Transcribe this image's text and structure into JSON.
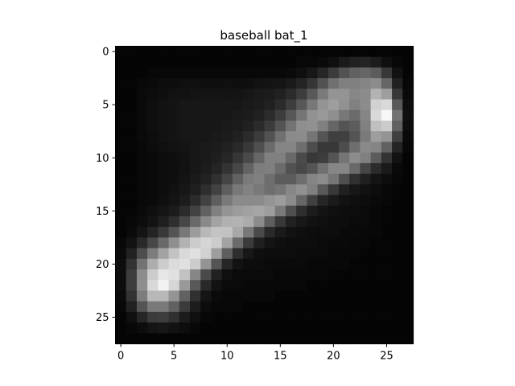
{
  "chart_data": {
    "type": "heatmap",
    "title": "baseball bat_1",
    "xlabel": "",
    "ylabel": "",
    "colormap": "gray",
    "vmin": 0,
    "vmax": 1,
    "x_ticks": [
      0,
      5,
      10,
      15,
      20,
      25
    ],
    "y_ticks": [
      0,
      5,
      10,
      15,
      20,
      25
    ],
    "xlim": [
      -0.5,
      27.5
    ],
    "ylim": [
      27.5,
      -0.5
    ],
    "grid": false,
    "shape": [
      28,
      28
    ],
    "description_of_values": "pixel intensity 0-1, estimated",
    "values": [
      [
        0.02,
        0.02,
        0.02,
        0.02,
        0.02,
        0.02,
        0.02,
        0.02,
        0.02,
        0.02,
        0.02,
        0.02,
        0.02,
        0.02,
        0.02,
        0.02,
        0.02,
        0.02,
        0.02,
        0.02,
        0.02,
        0.02,
        0.02,
        0.02,
        0.02,
        0.02,
        0.02,
        0.02
      ],
      [
        0.02,
        0.02,
        0.02,
        0.02,
        0.02,
        0.02,
        0.02,
        0.02,
        0.02,
        0.02,
        0.02,
        0.02,
        0.02,
        0.02,
        0.02,
        0.02,
        0.02,
        0.03,
        0.03,
        0.04,
        0.06,
        0.1,
        0.13,
        0.14,
        0.11,
        0.06,
        0.03,
        0.02
      ],
      [
        0.02,
        0.02,
        0.02,
        0.03,
        0.03,
        0.03,
        0.03,
        0.03,
        0.03,
        0.03,
        0.03,
        0.03,
        0.03,
        0.03,
        0.03,
        0.03,
        0.04,
        0.06,
        0.09,
        0.15,
        0.23,
        0.32,
        0.38,
        0.4,
        0.36,
        0.22,
        0.07,
        0.02
      ],
      [
        0.02,
        0.02,
        0.03,
        0.04,
        0.05,
        0.05,
        0.06,
        0.06,
        0.06,
        0.06,
        0.06,
        0.06,
        0.06,
        0.07,
        0.08,
        0.08,
        0.1,
        0.14,
        0.21,
        0.32,
        0.44,
        0.5,
        0.5,
        0.52,
        0.55,
        0.4,
        0.13,
        0.03
      ],
      [
        0.02,
        0.02,
        0.04,
        0.05,
        0.06,
        0.07,
        0.07,
        0.08,
        0.08,
        0.08,
        0.08,
        0.08,
        0.09,
        0.1,
        0.11,
        0.13,
        0.17,
        0.24,
        0.35,
        0.48,
        0.58,
        0.58,
        0.53,
        0.55,
        0.7,
        0.62,
        0.22,
        0.04
      ],
      [
        0.02,
        0.02,
        0.04,
        0.06,
        0.07,
        0.08,
        0.09,
        0.09,
        0.09,
        0.09,
        0.09,
        0.09,
        0.1,
        0.11,
        0.13,
        0.17,
        0.24,
        0.34,
        0.47,
        0.58,
        0.62,
        0.57,
        0.5,
        0.55,
        0.82,
        0.85,
        0.35,
        0.05
      ],
      [
        0.02,
        0.02,
        0.04,
        0.06,
        0.07,
        0.08,
        0.09,
        0.09,
        0.09,
        0.09,
        0.09,
        0.1,
        0.11,
        0.13,
        0.17,
        0.24,
        0.34,
        0.46,
        0.57,
        0.6,
        0.56,
        0.47,
        0.42,
        0.52,
        0.85,
        0.97,
        0.45,
        0.06
      ],
      [
        0.02,
        0.02,
        0.04,
        0.06,
        0.07,
        0.08,
        0.09,
        0.09,
        0.09,
        0.09,
        0.1,
        0.11,
        0.13,
        0.17,
        0.23,
        0.33,
        0.45,
        0.56,
        0.57,
        0.5,
        0.4,
        0.33,
        0.36,
        0.5,
        0.75,
        0.8,
        0.38,
        0.05
      ],
      [
        0.02,
        0.02,
        0.04,
        0.05,
        0.07,
        0.08,
        0.09,
        0.09,
        0.09,
        0.1,
        0.11,
        0.13,
        0.17,
        0.23,
        0.32,
        0.44,
        0.54,
        0.55,
        0.46,
        0.33,
        0.25,
        0.25,
        0.33,
        0.48,
        0.62,
        0.58,
        0.25,
        0.04
      ],
      [
        0.02,
        0.02,
        0.03,
        0.05,
        0.06,
        0.07,
        0.08,
        0.09,
        0.1,
        0.11,
        0.13,
        0.16,
        0.22,
        0.31,
        0.42,
        0.52,
        0.52,
        0.43,
        0.3,
        0.22,
        0.22,
        0.3,
        0.43,
        0.54,
        0.52,
        0.38,
        0.14,
        0.03
      ],
      [
        0.02,
        0.02,
        0.03,
        0.04,
        0.05,
        0.06,
        0.07,
        0.09,
        0.1,
        0.12,
        0.15,
        0.21,
        0.29,
        0.4,
        0.5,
        0.5,
        0.41,
        0.29,
        0.22,
        0.24,
        0.33,
        0.46,
        0.55,
        0.5,
        0.36,
        0.2,
        0.07,
        0.02
      ],
      [
        0.02,
        0.02,
        0.03,
        0.04,
        0.05,
        0.06,
        0.07,
        0.09,
        0.11,
        0.14,
        0.2,
        0.28,
        0.39,
        0.49,
        0.5,
        0.42,
        0.32,
        0.28,
        0.33,
        0.44,
        0.53,
        0.53,
        0.41,
        0.27,
        0.17,
        0.1,
        0.04,
        0.02
      ],
      [
        0.02,
        0.02,
        0.03,
        0.04,
        0.05,
        0.06,
        0.08,
        0.1,
        0.13,
        0.19,
        0.27,
        0.38,
        0.48,
        0.5,
        0.43,
        0.36,
        0.36,
        0.43,
        0.52,
        0.55,
        0.46,
        0.31,
        0.19,
        0.12,
        0.08,
        0.05,
        0.03,
        0.02
      ],
      [
        0.02,
        0.02,
        0.03,
        0.04,
        0.05,
        0.07,
        0.09,
        0.12,
        0.18,
        0.26,
        0.37,
        0.47,
        0.51,
        0.47,
        0.43,
        0.46,
        0.53,
        0.57,
        0.5,
        0.35,
        0.22,
        0.13,
        0.09,
        0.07,
        0.05,
        0.03,
        0.02,
        0.02
      ],
      [
        0.02,
        0.02,
        0.03,
        0.04,
        0.06,
        0.08,
        0.11,
        0.17,
        0.26,
        0.37,
        0.48,
        0.54,
        0.54,
        0.54,
        0.58,
        0.61,
        0.55,
        0.4,
        0.25,
        0.15,
        0.1,
        0.07,
        0.06,
        0.05,
        0.04,
        0.03,
        0.02,
        0.02
      ],
      [
        0.02,
        0.02,
        0.04,
        0.06,
        0.08,
        0.11,
        0.17,
        0.26,
        0.38,
        0.5,
        0.58,
        0.61,
        0.63,
        0.65,
        0.62,
        0.48,
        0.31,
        0.18,
        0.11,
        0.08,
        0.06,
        0.05,
        0.05,
        0.04,
        0.03,
        0.02,
        0.02,
        0.02
      ],
      [
        0.02,
        0.03,
        0.05,
        0.08,
        0.12,
        0.18,
        0.28,
        0.41,
        0.54,
        0.64,
        0.69,
        0.7,
        0.67,
        0.55,
        0.37,
        0.22,
        0.13,
        0.09,
        0.07,
        0.06,
        0.05,
        0.05,
        0.04,
        0.04,
        0.03,
        0.02,
        0.02,
        0.02
      ],
      [
        0.02,
        0.04,
        0.08,
        0.14,
        0.22,
        0.33,
        0.47,
        0.61,
        0.72,
        0.77,
        0.76,
        0.66,
        0.47,
        0.29,
        0.16,
        0.1,
        0.07,
        0.06,
        0.05,
        0.05,
        0.05,
        0.04,
        0.04,
        0.03,
        0.03,
        0.02,
        0.02,
        0.02
      ],
      [
        0.03,
        0.07,
        0.16,
        0.28,
        0.41,
        0.56,
        0.7,
        0.8,
        0.84,
        0.8,
        0.64,
        0.42,
        0.23,
        0.12,
        0.08,
        0.06,
        0.05,
        0.05,
        0.05,
        0.04,
        0.04,
        0.04,
        0.03,
        0.03,
        0.02,
        0.02,
        0.02,
        0.02
      ],
      [
        0.04,
        0.13,
        0.3,
        0.49,
        0.64,
        0.76,
        0.85,
        0.88,
        0.82,
        0.62,
        0.37,
        0.18,
        0.09,
        0.06,
        0.05,
        0.05,
        0.05,
        0.04,
        0.04,
        0.04,
        0.03,
        0.03,
        0.03,
        0.02,
        0.02,
        0.02,
        0.02,
        0.02
      ],
      [
        0.05,
        0.2,
        0.45,
        0.68,
        0.8,
        0.86,
        0.88,
        0.8,
        0.58,
        0.33,
        0.15,
        0.07,
        0.05,
        0.05,
        0.04,
        0.04,
        0.04,
        0.04,
        0.03,
        0.03,
        0.03,
        0.03,
        0.02,
        0.02,
        0.02,
        0.02,
        0.02,
        0.02
      ],
      [
        0.05,
        0.24,
        0.55,
        0.8,
        0.9,
        0.88,
        0.76,
        0.53,
        0.29,
        0.13,
        0.06,
        0.04,
        0.04,
        0.04,
        0.04,
        0.03,
        0.03,
        0.03,
        0.03,
        0.03,
        0.02,
        0.02,
        0.02,
        0.02,
        0.02,
        0.02,
        0.02,
        0.02
      ],
      [
        0.05,
        0.24,
        0.56,
        0.85,
        0.95,
        0.84,
        0.6,
        0.35,
        0.16,
        0.07,
        0.04,
        0.04,
        0.03,
        0.03,
        0.03,
        0.03,
        0.03,
        0.03,
        0.02,
        0.02,
        0.02,
        0.02,
        0.02,
        0.02,
        0.02,
        0.02,
        0.02,
        0.02
      ],
      [
        0.04,
        0.2,
        0.49,
        0.72,
        0.72,
        0.58,
        0.38,
        0.19,
        0.08,
        0.04,
        0.03,
        0.03,
        0.03,
        0.03,
        0.03,
        0.02,
        0.02,
        0.02,
        0.02,
        0.02,
        0.02,
        0.02,
        0.02,
        0.02,
        0.02,
        0.02,
        0.02,
        0.02
      ],
      [
        0.03,
        0.13,
        0.33,
        0.48,
        0.48,
        0.38,
        0.23,
        0.11,
        0.05,
        0.03,
        0.03,
        0.03,
        0.02,
        0.02,
        0.02,
        0.02,
        0.02,
        0.02,
        0.02,
        0.02,
        0.02,
        0.02,
        0.02,
        0.02,
        0.02,
        0.02,
        0.02,
        0.02
      ],
      [
        0.02,
        0.06,
        0.15,
        0.23,
        0.24,
        0.19,
        0.11,
        0.06,
        0.03,
        0.02,
        0.02,
        0.02,
        0.02,
        0.02,
        0.02,
        0.02,
        0.02,
        0.02,
        0.02,
        0.02,
        0.02,
        0.02,
        0.02,
        0.02,
        0.02,
        0.02,
        0.02,
        0.02
      ],
      [
        0.02,
        0.03,
        0.05,
        0.08,
        0.09,
        0.07,
        0.05,
        0.03,
        0.02,
        0.02,
        0.02,
        0.02,
        0.02,
        0.02,
        0.02,
        0.02,
        0.02,
        0.02,
        0.02,
        0.02,
        0.02,
        0.02,
        0.02,
        0.02,
        0.02,
        0.02,
        0.02,
        0.02
      ],
      [
        0.02,
        0.02,
        0.02,
        0.02,
        0.02,
        0.02,
        0.02,
        0.02,
        0.02,
        0.02,
        0.02,
        0.02,
        0.02,
        0.02,
        0.02,
        0.02,
        0.02,
        0.02,
        0.02,
        0.02,
        0.02,
        0.02,
        0.02,
        0.02,
        0.02,
        0.02,
        0.02,
        0.02
      ]
    ]
  }
}
